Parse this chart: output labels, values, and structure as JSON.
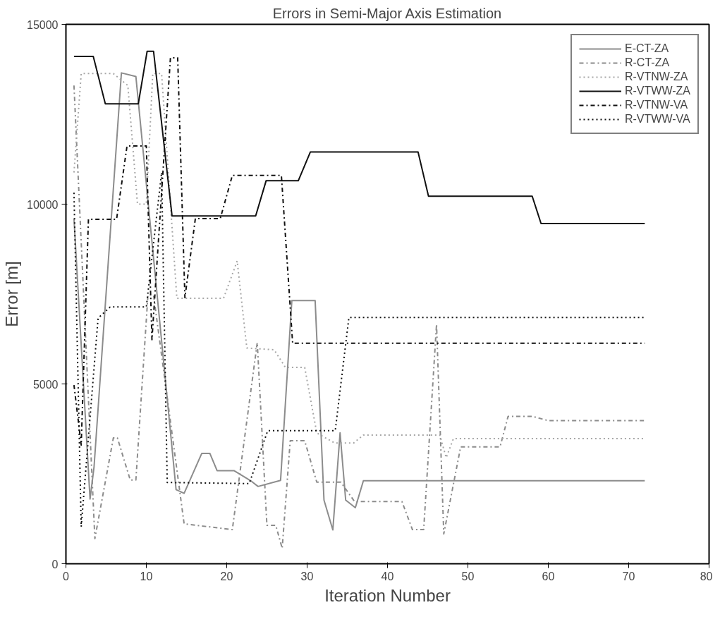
{
  "chart_data": {
    "type": "line",
    "title": "Errors in Semi-Major Axis Estimation",
    "xlabel": "Iteration Number",
    "ylabel": "Error [m]",
    "xlim": [
      0,
      80
    ],
    "ylim": [
      0,
      15000
    ],
    "xticks": [
      0,
      10,
      20,
      30,
      40,
      50,
      60,
      70,
      80
    ],
    "yticks": [
      0,
      5000,
      10000,
      15000
    ],
    "grid": false,
    "legend": "top right",
    "marker": "none",
    "series": [
      {
        "name": "E-CT-ZA",
        "color": "#8c8c8c",
        "line_style": "solid",
        "x": [
          1,
          3,
          3.5,
          6.9,
          8.7,
          13.7,
          14.7,
          16.9,
          17.9,
          18.8,
          20.9,
          23.1,
          23.9,
          26.7,
          28.1,
          31,
          32.1,
          33.2,
          34.1,
          34.8,
          36,
          37,
          72
        ],
        "values": [
          9600,
          1800,
          2700,
          13650,
          13550,
          2060,
          1960,
          3070,
          3070,
          2590,
          2590,
          2290,
          2150,
          2320,
          7320,
          7320,
          1770,
          940,
          3640,
          1770,
          1560,
          2310,
          2310
        ]
      },
      {
        "name": "R-CT-ZA",
        "color": "#8c8c8c",
        "line_style": "dashdot",
        "x": [
          1,
          3.6,
          5.9,
          6.4,
          8,
          8.7,
          10.2,
          10.9,
          14.7,
          20.7,
          23.8,
          25,
          26.1,
          26.9,
          27.9,
          29.7,
          31.2,
          34.2,
          35.9,
          41.8,
          43.1,
          44.5,
          46.1,
          47,
          49.1,
          54,
          55,
          58,
          60,
          72
        ],
        "values": [
          13300,
          700,
          3500,
          3500,
          2330,
          2330,
          7470,
          7470,
          1110,
          950,
          6150,
          1070,
          1070,
          430,
          3420,
          3420,
          2270,
          2270,
          1730,
          1730,
          950,
          950,
          6660,
          830,
          3250,
          3250,
          4100,
          4100,
          3980,
          3980
        ]
      },
      {
        "name": "R-VTNW-ZA",
        "color": "#a6a6a6",
        "line_style": "dotted",
        "x": [
          1,
          1.9,
          5.9,
          7.7,
          8.9,
          10,
          10.8,
          11.9,
          13.8,
          19.6,
          21.3,
          22.5,
          25.9,
          27.3,
          29.7,
          31.2,
          33.4,
          35.8,
          37,
          46.5,
          47.3,
          48.2,
          72
        ],
        "values": [
          10880,
          13630,
          13630,
          13300,
          10000,
          10000,
          13630,
          13630,
          7380,
          7380,
          8420,
          6000,
          5950,
          5460,
          5460,
          3640,
          3360,
          3360,
          3580,
          3580,
          2950,
          3480,
          3480
        ]
      },
      {
        "name": "R-VTWW-ZA",
        "color": "#111111",
        "line_style": "solid",
        "x": [
          1,
          3.4,
          4.9,
          9,
          10.1,
          10.9,
          13.2,
          23.6,
          24.9,
          28.9,
          30.4,
          43.8,
          45.1,
          58,
          59.1,
          72
        ],
        "values": [
          14110,
          14110,
          12790,
          12790,
          14250,
          14250,
          9670,
          9670,
          10650,
          10650,
          11450,
          11450,
          10220,
          10220,
          9460,
          9460
        ]
      },
      {
        "name": "R-VTNW-VA",
        "color": "#111111",
        "line_style": "dashdot",
        "x": [
          1,
          1.9,
          2.8,
          6.3,
          7.6,
          10,
          10.7,
          13,
          13.9,
          14.8,
          16.1,
          19.2,
          20.7,
          26.8,
          28.2,
          72
        ],
        "values": [
          4970,
          3300,
          9580,
          9580,
          11620,
          11620,
          6230,
          14070,
          14070,
          7400,
          9600,
          9600,
          10800,
          10800,
          6130,
          6130
        ]
      },
      {
        "name": "R-VTWW-VA",
        "color": "#111111",
        "line_style": "dotted",
        "x": [
          1,
          1.9,
          4,
          5.5,
          10,
          11.9,
          12.6,
          22.8,
          25.1,
          33.5,
          35.2,
          72
        ],
        "values": [
          10320,
          1030,
          6830,
          7140,
          7140,
          10880,
          2260,
          2230,
          3700,
          3700,
          6850,
          6850
        ]
      }
    ]
  }
}
